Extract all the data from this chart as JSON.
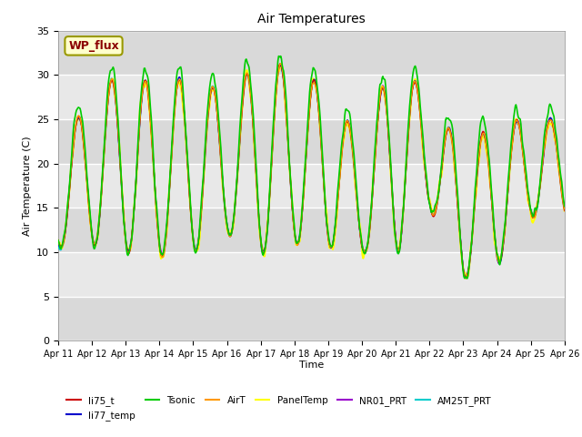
{
  "title": "Air Temperatures",
  "xlabel": "Time",
  "ylabel": "Air Temperature (C)",
  "ylim": [
    0,
    35
  ],
  "yticks": [
    0,
    5,
    10,
    15,
    20,
    25,
    30,
    35
  ],
  "fig_facecolor": "#ffffff",
  "axes_facecolor": "#e8e8e8",
  "grid_color": "#c8c8c8",
  "series": {
    "li75_t": {
      "color": "#cc0000",
      "lw": 1.0
    },
    "li77_temp": {
      "color": "#0000cc",
      "lw": 1.0
    },
    "Tsonic": {
      "color": "#00cc00",
      "lw": 1.2
    },
    "AirT": {
      "color": "#ff9900",
      "lw": 1.0
    },
    "PanelTemp": {
      "color": "#ffff00",
      "lw": 1.5
    },
    "NR01_PRT": {
      "color": "#9900cc",
      "lw": 1.0
    },
    "AM25T_PRT": {
      "color": "#00cccc",
      "lw": 1.2
    }
  },
  "xticklabels": [
    "Apr 11",
    "Apr 12",
    "Apr 13",
    "Apr 14",
    "Apr 15",
    "Apr 16",
    "Apr 17",
    "Apr 18",
    "Apr 19",
    "Apr 20",
    "Apr 21",
    "Apr 22",
    "Apr 23",
    "Apr 24",
    "Apr 25",
    "Apr 26"
  ],
  "legend_label": "WP_flux",
  "legend_facecolor": "#ffffcc",
  "legend_edgecolor": "#999900",
  "legend_order": [
    "li75_t",
    "li77_temp",
    "Tsonic",
    "AirT",
    "PanelTemp",
    "NR01_PRT",
    "AM25T_PRT"
  ]
}
